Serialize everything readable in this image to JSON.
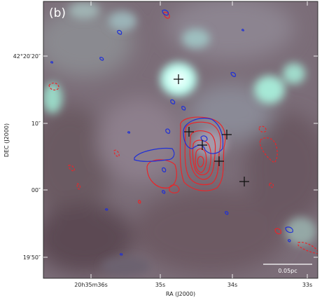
{
  "panel_label": "(b)",
  "axes": {
    "xlabel": "RA (J2000)",
    "ylabel": "DEC (J2000)",
    "x_ticks": [
      "20h35m36s",
      "35s",
      "34s",
      "33s"
    ],
    "y_ticks": [
      "42°20′20″",
      "10″",
      "00″",
      "19′50″"
    ]
  },
  "scalebar": {
    "label": "0.05pc"
  },
  "colors": {
    "contour_red": "#e8262a",
    "contour_blue": "#1f2fd6",
    "marker": "#111111",
    "frame": "#222222"
  },
  "markers": {
    "symbol": "plus",
    "count": 6
  }
}
